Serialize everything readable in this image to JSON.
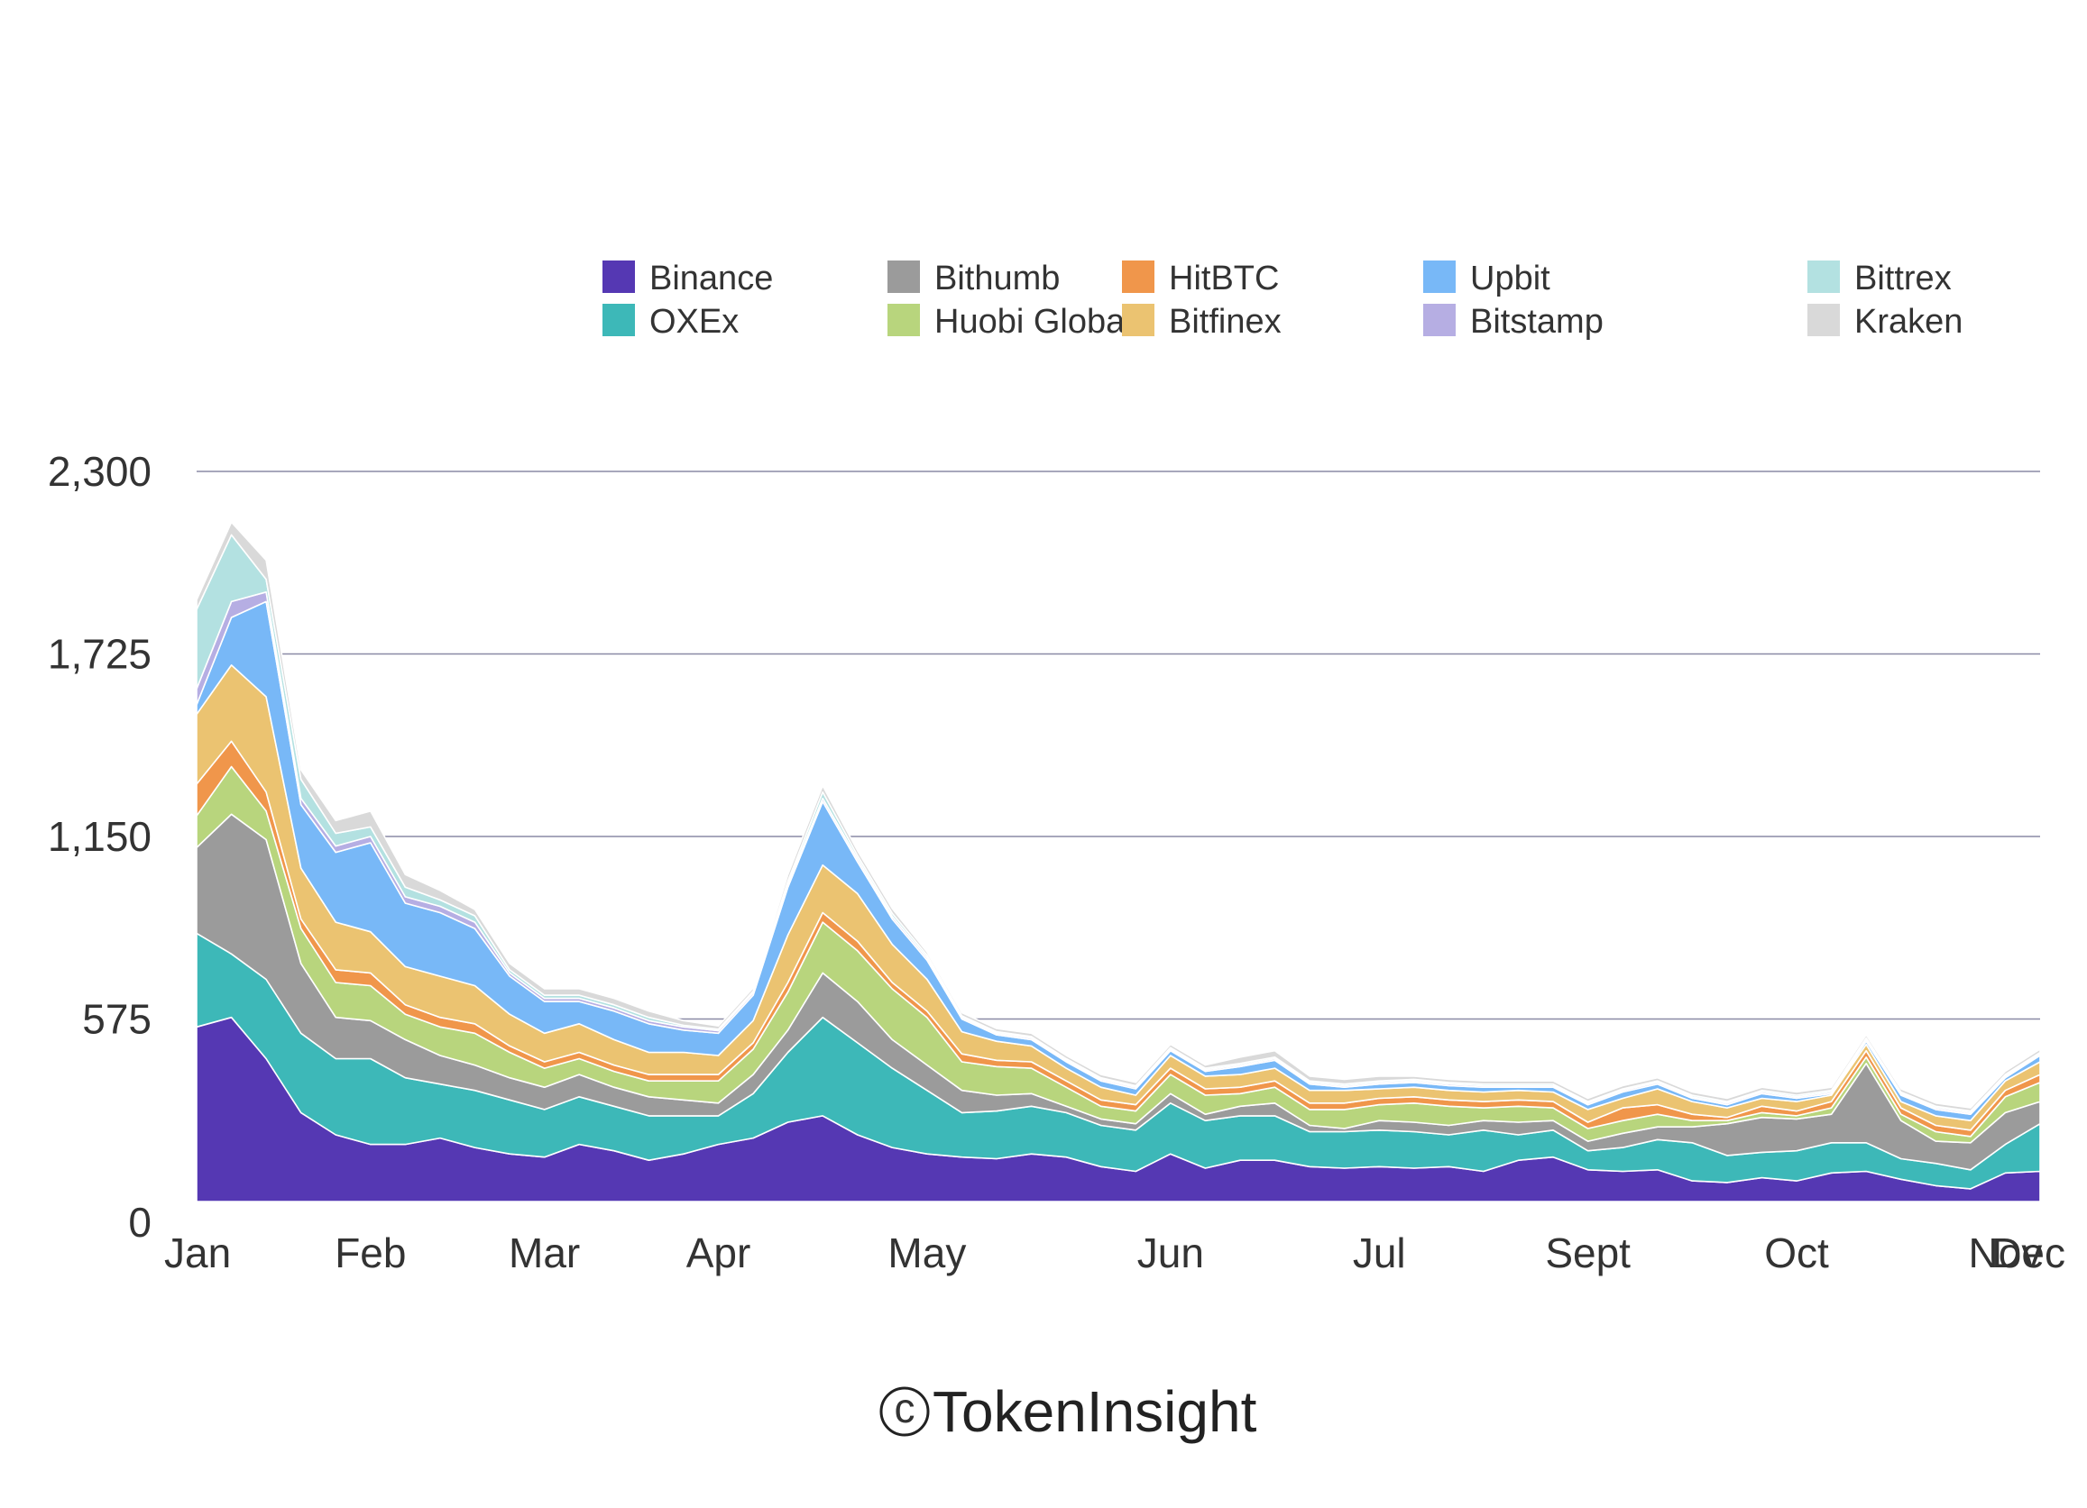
{
  "chart_data": {
    "type": "area",
    "stacked": true,
    "title": "",
    "xlabel": "",
    "ylabel": "",
    "ylim": [
      0,
      2300
    ],
    "yticks": [
      0,
      575,
      1150,
      1725,
      2300
    ],
    "ytick_labels": [
      "0",
      "575",
      "1,150",
      "1,725",
      "2,300"
    ],
    "month_labels": [
      "Jan",
      "Feb",
      "Mar",
      "Apr",
      "May",
      "Jun",
      "Jul",
      "Sept",
      "Oct",
      "Nov",
      "Dec"
    ],
    "month_positions": [
      0,
      5,
      10,
      15,
      21,
      28,
      34,
      40,
      46,
      52,
      57
    ],
    "grid": true,
    "legend_position": "top",
    "watermark": "TokenInsight",
    "watermark_symbol": "c",
    "series": [
      {
        "name": "Binance",
        "color": "#5538b3",
        "values": [
          550,
          580,
          450,
          280,
          210,
          180,
          180,
          200,
          170,
          150,
          140,
          180,
          160,
          130,
          150,
          180,
          200,
          250,
          270,
          210,
          170,
          150,
          140,
          135,
          150,
          140,
          110,
          95,
          150,
          105,
          130,
          130,
          110,
          105,
          110,
          105,
          110,
          95,
          130,
          140,
          100,
          95,
          100,
          65,
          60,
          75,
          65,
          90,
          95,
          70,
          50,
          40,
          90,
          95
        ]
      },
      {
        "name": "OXEx",
        "color": "#3db8b8",
        "values": [
          295,
          200,
          250,
          250,
          240,
          270,
          210,
          170,
          180,
          170,
          150,
          150,
          140,
          140,
          120,
          90,
          140,
          220,
          310,
          290,
          250,
          200,
          140,
          150,
          150,
          140,
          130,
          130,
          160,
          150,
          140,
          140,
          110,
          115,
          115,
          115,
          100,
          130,
          80,
          85,
          60,
          75,
          95,
          120,
          85,
          80,
          95,
          95,
          90,
          65,
          70,
          60,
          90,
          150
        ]
      },
      {
        "name": "Bithumb",
        "color": "#9b9b9b",
        "values": [
          270,
          440,
          440,
          220,
          130,
          120,
          120,
          90,
          80,
          70,
          70,
          70,
          60,
          60,
          50,
          40,
          60,
          70,
          140,
          130,
          90,
          80,
          70,
          50,
          40,
          20,
          20,
          20,
          30,
          20,
          30,
          40,
          20,
          10,
          30,
          30,
          30,
          30,
          40,
          30,
          30,
          45,
          40,
          50,
          100,
          110,
          100,
          90,
          250,
          120,
          70,
          85,
          100,
          70
        ]
      },
      {
        "name": "Huobi Global",
        "color": "#b8d57d",
        "values": [
          100,
          150,
          90,
          110,
          110,
          110,
          80,
          90,
          100,
          80,
          60,
          50,
          50,
          50,
          60,
          70,
          80,
          120,
          160,
          160,
          160,
          150,
          90,
          90,
          80,
          60,
          40,
          40,
          60,
          60,
          40,
          50,
          50,
          60,
          50,
          60,
          60,
          40,
          50,
          40,
          40,
          40,
          40,
          20,
          10,
          15,
          10,
          20,
          20,
          20,
          30,
          20,
          50,
          60
        ]
      },
      {
        "name": "HitBTC",
        "color": "#f0964b",
        "values": [
          100,
          80,
          60,
          30,
          40,
          40,
          30,
          30,
          30,
          20,
          20,
          20,
          20,
          20,
          20,
          20,
          20,
          30,
          30,
          30,
          20,
          20,
          25,
          20,
          20,
          20,
          20,
          20,
          20,
          20,
          20,
          20,
          20,
          20,
          20,
          20,
          20,
          20,
          20,
          20,
          20,
          40,
          30,
          20,
          10,
          20,
          15,
          20,
          20,
          20,
          20,
          20,
          20,
          25
        ]
      },
      {
        "name": "Bitfinex",
        "color": "#ebc371",
        "values": [
          220,
          240,
          300,
          160,
          150,
          130,
          120,
          130,
          120,
          100,
          90,
          90,
          80,
          70,
          70,
          60,
          70,
          150,
          150,
          150,
          120,
          100,
          70,
          60,
          50,
          40,
          40,
          30,
          40,
          40,
          40,
          40,
          40,
          40,
          30,
          30,
          30,
          30,
          30,
          30,
          40,
          30,
          50,
          40,
          30,
          25,
          30,
          20,
          20,
          20,
          30,
          30,
          30,
          40
        ]
      },
      {
        "name": "Upbit",
        "color": "#78b8f7",
        "values": [
          30,
          150,
          300,
          200,
          220,
          280,
          200,
          200,
          180,
          120,
          100,
          70,
          90,
          90,
          70,
          70,
          80,
          150,
          200,
          100,
          80,
          60,
          40,
          20,
          20,
          20,
          20,
          20,
          15,
          15,
          25,
          25,
          20,
          10,
          15,
          15,
          15,
          15,
          10,
          15,
          15,
          20,
          15,
          10,
          10,
          15,
          10,
          5,
          10,
          20,
          20,
          20,
          10,
          20
        ]
      },
      {
        "name": "Bitstamp",
        "color": "#b6aee3",
        "values": [
          50,
          50,
          30,
          20,
          20,
          20,
          20,
          20,
          20,
          10,
          10,
          10,
          10,
          10,
          10,
          8,
          8,
          10,
          10,
          10,
          8,
          8,
          5,
          5,
          5,
          5,
          5,
          5,
          5,
          5,
          5,
          5,
          5,
          5,
          5,
          5,
          5,
          5,
          5,
          5,
          5,
          5,
          5,
          5,
          5,
          5,
          5,
          5,
          5,
          5,
          5,
          5,
          5,
          5
        ]
      },
      {
        "name": "Bittrex",
        "color": "#b3e1e1",
        "values": [
          250,
          210,
          40,
          60,
          40,
          30,
          30,
          20,
          20,
          10,
          10,
          10,
          10,
          10,
          5,
          5,
          5,
          10,
          20,
          10,
          10,
          8,
          5,
          5,
          5,
          5,
          5,
          5,
          5,
          5,
          5,
          5,
          5,
          5,
          5,
          5,
          5,
          5,
          5,
          5,
          5,
          5,
          5,
          5,
          5,
          5,
          5,
          5,
          5,
          5,
          5,
          5,
          5,
          5
        ]
      },
      {
        "name": "Kraken",
        "color": "#d9d9d9",
        "values": [
          30,
          40,
          60,
          30,
          40,
          50,
          40,
          30,
          20,
          20,
          20,
          20,
          20,
          20,
          15,
          10,
          10,
          20,
          20,
          15,
          15,
          10,
          10,
          10,
          10,
          10,
          10,
          10,
          10,
          10,
          20,
          20,
          15,
          15,
          15,
          10,
          10,
          10,
          10,
          10,
          10,
          10,
          10,
          10,
          10,
          10,
          10,
          10,
          10,
          10,
          10,
          10,
          10,
          10
        ]
      }
    ]
  }
}
